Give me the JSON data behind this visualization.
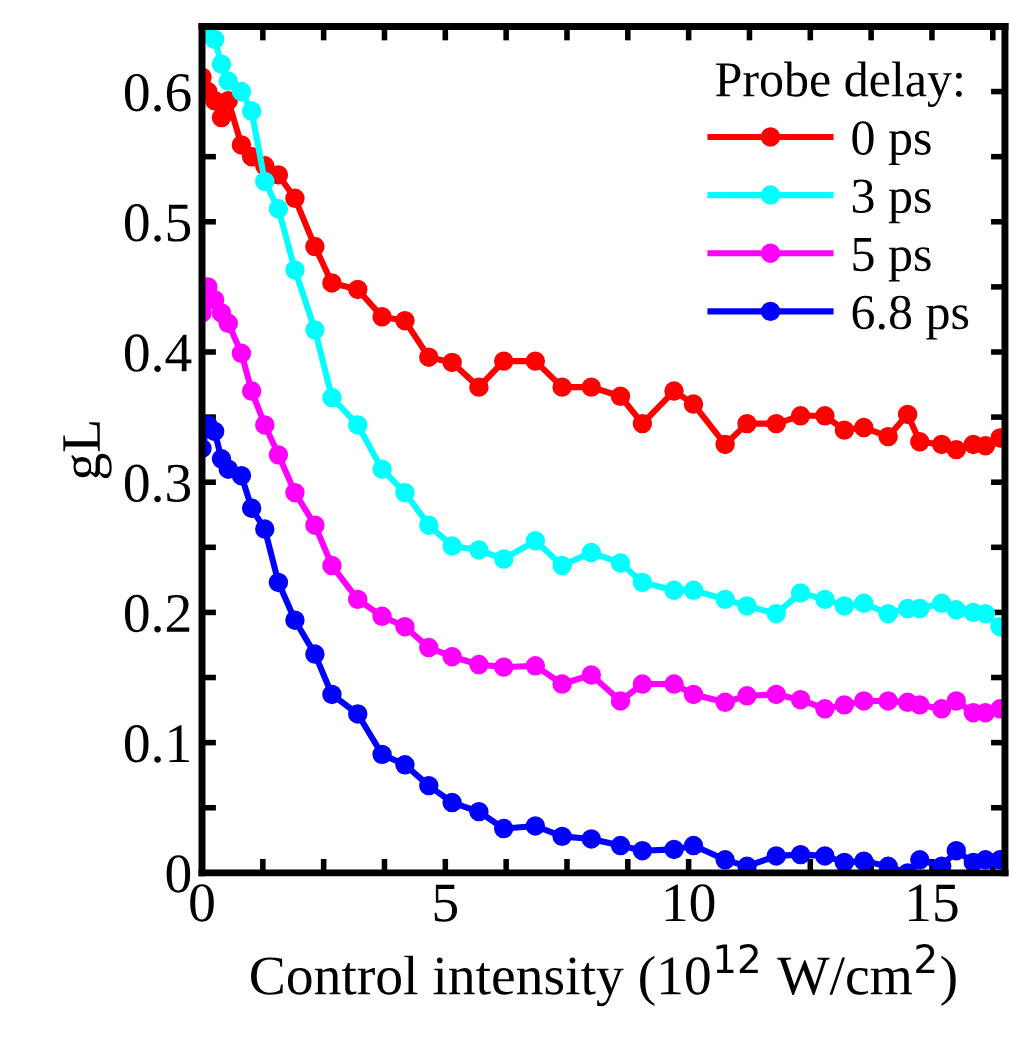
{
  "chart_data": {
    "type": "line",
    "xlabel": "Control intensity (10$^{12}$ W/cm$^{2}$)",
    "ylabel": "gL",
    "legend_title": "Probe delay:",
    "x": [
      0,
      0.12,
      0.26,
      0.4,
      0.54,
      0.81,
      1.02,
      1.29,
      1.57,
      1.91,
      2.32,
      2.67,
      3.2,
      3.7,
      4.17,
      4.66,
      5.14,
      5.69,
      6.2,
      6.85,
      7.4,
      8.0,
      8.6,
      9.05,
      9.7,
      10.1,
      10.75,
      11.2,
      11.8,
      12.3,
      12.8,
      13.2,
      13.6,
      14.1,
      14.5,
      14.75,
      15.2,
      15.5,
      15.85,
      16.1,
      16.4
    ],
    "series": [
      {
        "name": "0 ps",
        "color": "#ff0000",
        "values": [
          0.611,
          0.6,
          0.593,
          0.58,
          0.593,
          0.559,
          0.55,
          0.543,
          0.536,
          0.518,
          0.481,
          0.453,
          0.448,
          0.427,
          0.424,
          0.396,
          0.392,
          0.373,
          0.393,
          0.393,
          0.373,
          0.373,
          0.366,
          0.345,
          0.37,
          0.36,
          0.329,
          0.345,
          0.345,
          0.351,
          0.351,
          0.34,
          0.342,
          0.335,
          0.352,
          0.331,
          0.329,
          0.325,
          0.329,
          0.328,
          0.334
        ]
      },
      {
        "name": "3 ps",
        "color": "#00ffff",
        "values": [
          0.647,
          0.645,
          0.64,
          0.621,
          0.608,
          0.6,
          0.585,
          0.531,
          0.51,
          0.463,
          0.417,
          0.365,
          0.344,
          0.31,
          0.292,
          0.267,
          0.251,
          0.248,
          0.241,
          0.255,
          0.236,
          0.246,
          0.238,
          0.223,
          0.217,
          0.217,
          0.21,
          0.205,
          0.199,
          0.215,
          0.21,
          0.205,
          0.207,
          0.199,
          0.203,
          0.203,
          0.207,
          0.202,
          0.2,
          0.199,
          0.189
        ]
      },
      {
        "name": "5 ps",
        "color": "#ff00ff",
        "values": [
          0.43,
          0.45,
          0.44,
          0.43,
          0.422,
          0.399,
          0.37,
          0.344,
          0.321,
          0.292,
          0.267,
          0.236,
          0.21,
          0.197,
          0.189,
          0.173,
          0.166,
          0.16,
          0.158,
          0.159,
          0.145,
          0.152,
          0.132,
          0.145,
          0.145,
          0.137,
          0.131,
          0.136,
          0.137,
          0.133,
          0.126,
          0.129,
          0.132,
          0.132,
          0.131,
          0.129,
          0.126,
          0.132,
          0.123,
          0.123,
          0.126
        ]
      },
      {
        "name": "6.8 ps",
        "color": "#0000ff",
        "values": [
          0.326,
          0.344,
          0.339,
          0.318,
          0.31,
          0.305,
          0.28,
          0.264,
          0.223,
          0.194,
          0.168,
          0.137,
          0.122,
          0.091,
          0.083,
          0.067,
          0.054,
          0.047,
          0.034,
          0.036,
          0.028,
          0.026,
          0.021,
          0.017,
          0.018,
          0.021,
          0.01,
          0.005,
          0.013,
          0.014,
          0.013,
          0.008,
          0.009,
          0.005,
          0.0,
          0.01,
          0.005,
          0.017,
          0.008,
          0.01,
          0.01
        ]
      }
    ],
    "xlim": [
      0,
      16.5
    ],
    "xticks": [
      0,
      {
        "value": 1.25,
        "label": null
      },
      {
        "value": 2.5,
        "label": null
      },
      {
        "value": 3.75,
        "label": null
      },
      5,
      {
        "value": 6.25,
        "label": null
      },
      {
        "value": 7.5,
        "label": null
      },
      {
        "value": 8.75,
        "label": null
      },
      10,
      {
        "value": 11.25,
        "label": null
      },
      {
        "value": 12.5,
        "label": null
      },
      {
        "value": 13.75,
        "label": null
      },
      15,
      {
        "value": 16.25,
        "label": null
      }
    ],
    "ylim": [
      0,
      0.65
    ],
    "yticks": [
      0,
      {
        "value": 0.05,
        "label": null
      },
      0.1,
      {
        "value": 0.15,
        "label": null
      },
      0.2,
      {
        "value": 0.25,
        "label": null
      },
      0.3,
      {
        "value": 0.35,
        "label": null
      },
      0.4,
      {
        "value": 0.45,
        "label": null
      },
      0.5,
      {
        "value": 0.55,
        "label": null
      },
      0.6
    ],
    "marker": "circle",
    "line_style": "solid",
    "grid": false,
    "legend": "top right"
  }
}
